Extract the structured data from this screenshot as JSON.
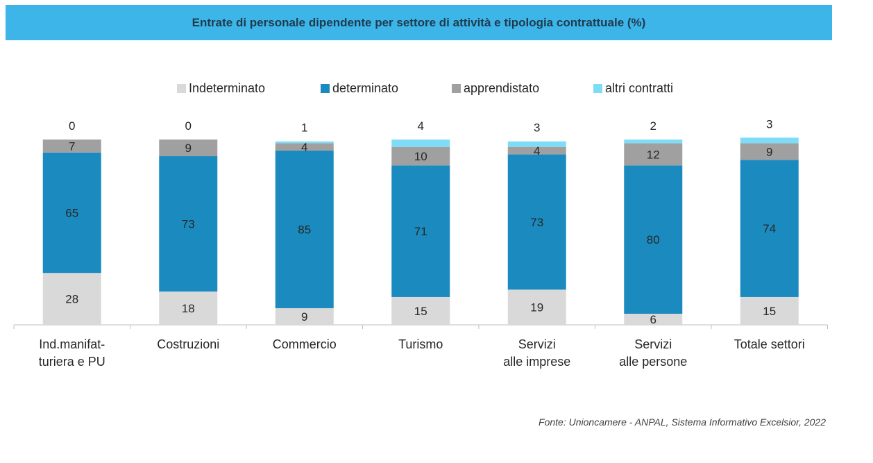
{
  "title": "Entrate di personale dipendente per settore di attività e tipologia contrattuale (%)",
  "source": "Fonte: Unioncamere - ANPAL, Sistema Informativo Excelsior, 2022",
  "chart_data": {
    "type": "bar",
    "stacked": true,
    "categories": [
      [
        "Ind.manifat-",
        "turiera e PU"
      ],
      [
        "Costruzioni"
      ],
      [
        "Commercio"
      ],
      [
        "Turismo"
      ],
      [
        "Servizi",
        "alle imprese"
      ],
      [
        "Servizi",
        "alle persone"
      ],
      [
        "Totale settori"
      ]
    ],
    "series": [
      {
        "name": "Indeterminato",
        "color": "#d9d9d9",
        "values": [
          28,
          18,
          9,
          15,
          19,
          6,
          15
        ]
      },
      {
        "name": "determinato",
        "color": "#1b8bbf",
        "values": [
          65,
          73,
          85,
          71,
          73,
          80,
          74
        ]
      },
      {
        "name": "apprendistato",
        "color": "#a0a0a0",
        "values": [
          7,
          9,
          4,
          10,
          4,
          12,
          9
        ]
      },
      {
        "name": "altri contratti",
        "color": "#7fdcf7",
        "values": [
          0,
          0,
          1,
          4,
          3,
          2,
          3
        ]
      }
    ],
    "ylim": [
      0,
      100
    ],
    "legend_position": "top",
    "grid": false
  }
}
